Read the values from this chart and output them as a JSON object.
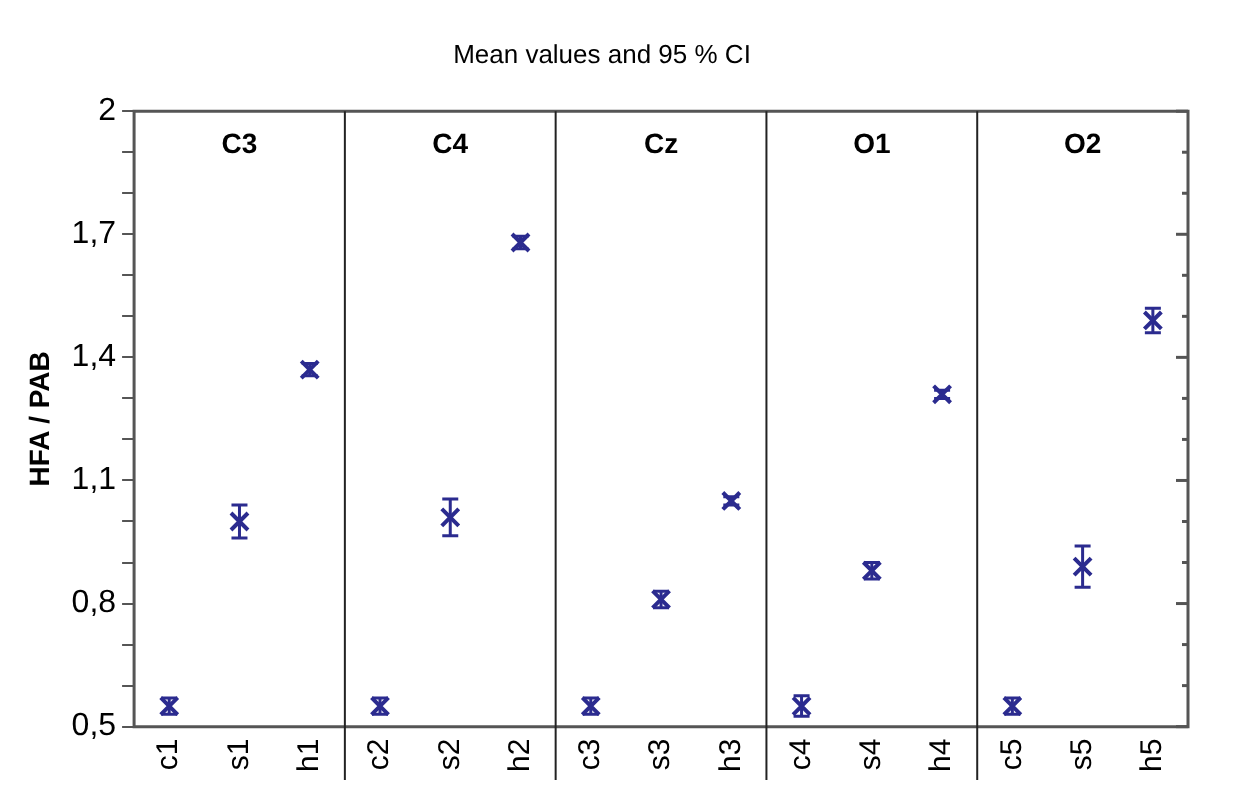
{
  "chart_data": {
    "type": "scatter",
    "title": "Mean values and 95 % CI",
    "ylabel": "HFA / PAB",
    "categories": [
      "c1",
      "s1",
      "h1",
      "c2",
      "s2",
      "h2",
      "c3",
      "s3",
      "h3",
      "c4",
      "s4",
      "h4",
      "c5",
      "s5",
      "h5"
    ],
    "values": [
      0.55,
      1.0,
      1.37,
      0.55,
      1.01,
      1.68,
      0.55,
      0.81,
      1.05,
      0.55,
      0.88,
      1.31,
      0.55,
      0.89,
      1.49
    ],
    "errors": [
      0.02,
      0.04,
      0.015,
      0.02,
      0.045,
      0.015,
      0.02,
      0.02,
      0.01,
      0.025,
      0.02,
      0.01,
      0.02,
      0.05,
      0.03
    ],
    "color": "#2b2b8f",
    "marker": "cross",
    "grid": false,
    "legend": false,
    "ylim": [
      0.5,
      2
    ],
    "yticks": [
      {
        "value": 0.5,
        "label": "0,5"
      },
      {
        "value": 0.6,
        "label": null
      },
      {
        "value": 0.7,
        "label": null
      },
      {
        "value": 0.8,
        "label": "0,8"
      },
      {
        "value": 0.9,
        "label": null
      },
      {
        "value": 1.0,
        "label": null
      },
      {
        "value": 1.1,
        "label": "1,1"
      },
      {
        "value": 1.2,
        "label": null
      },
      {
        "value": 1.3,
        "label": null
      },
      {
        "value": 1.4,
        "label": "1,4"
      },
      {
        "value": 1.5,
        "label": null
      },
      {
        "value": 1.6,
        "label": null
      },
      {
        "value": 1.7,
        "label": "1,7"
      },
      {
        "value": 1.8,
        "label": null
      },
      {
        "value": 1.9,
        "label": null
      },
      2
    ],
    "annotations": [
      "C3",
      "C4",
      "Cz",
      "O1",
      "O2"
    ]
  }
}
